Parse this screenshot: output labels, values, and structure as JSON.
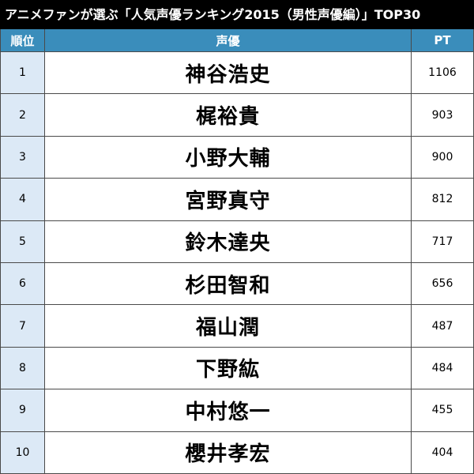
{
  "title": "アニメファンが選ぶ「人気声優ランキング2015（男性声優編）」TOP30",
  "headers": {
    "rank": "順位",
    "name": "声優",
    "pt": "PT"
  },
  "rows": [
    {
      "rank": "1",
      "name": "神谷浩史",
      "pt": "1106"
    },
    {
      "rank": "2",
      "name": "梶裕貴",
      "pt": "903"
    },
    {
      "rank": "3",
      "name": "小野大輔",
      "pt": "900"
    },
    {
      "rank": "4",
      "name": "宮野真守",
      "pt": "812"
    },
    {
      "rank": "5",
      "name": "鈴木達央",
      "pt": "717"
    },
    {
      "rank": "6",
      "name": "杉田智和",
      "pt": "656"
    },
    {
      "rank": "7",
      "name": "福山潤",
      "pt": "487"
    },
    {
      "rank": "8",
      "name": "下野紘",
      "pt": "484"
    },
    {
      "rank": "9",
      "name": "中村悠一",
      "pt": "455"
    },
    {
      "rank": "10",
      "name": "櫻井孝宏",
      "pt": "404"
    }
  ],
  "colors": {
    "title_bg": "#000000",
    "header_bg": "#3a8dbb",
    "rank_bg": "#dce9f6",
    "grid_line": "#4a4a4a"
  }
}
